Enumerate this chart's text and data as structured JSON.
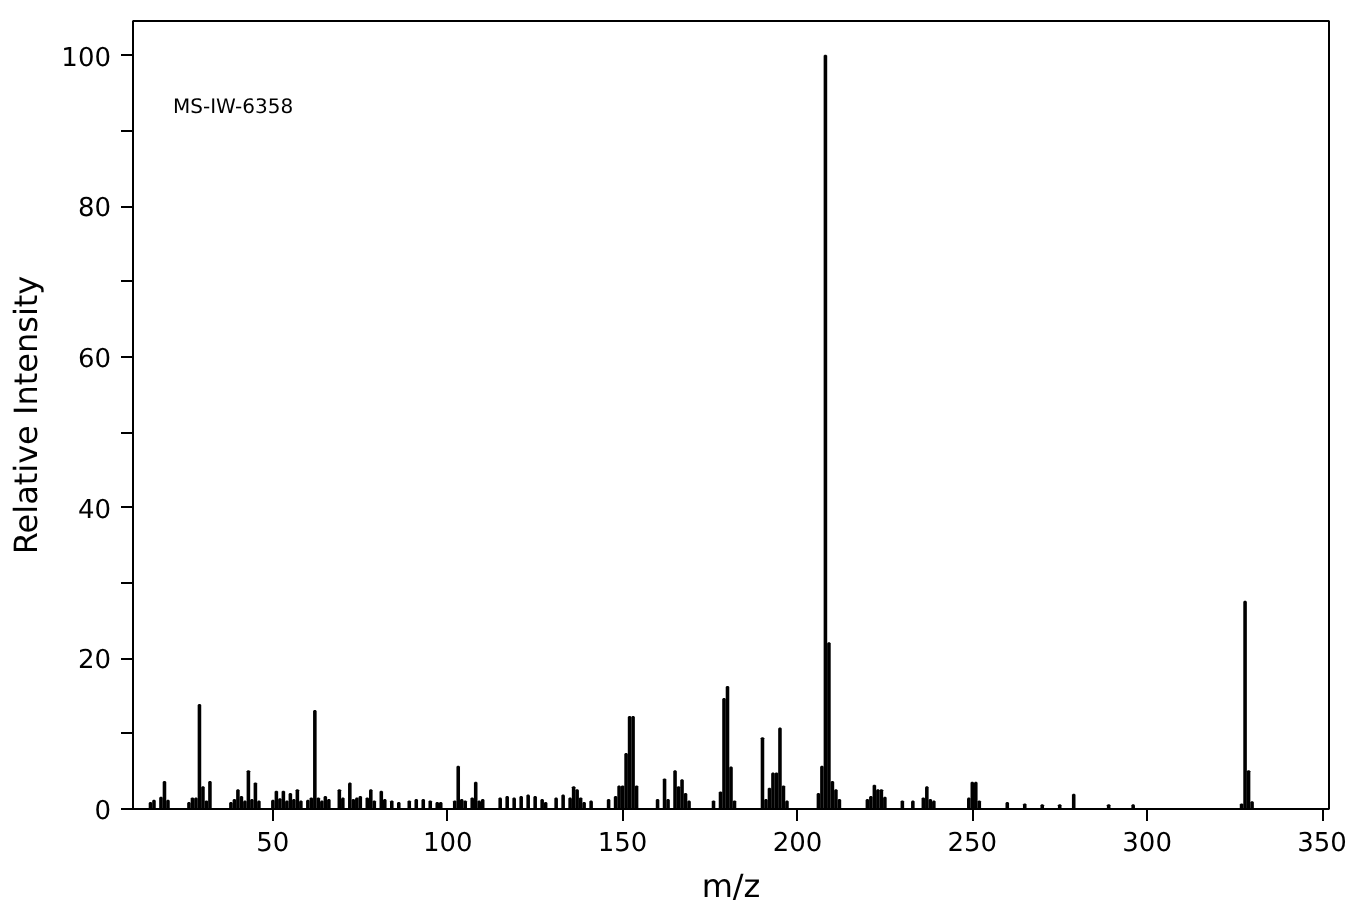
{
  "chart_data": {
    "type": "bar",
    "xlabel": "m/z",
    "ylabel": "Relative Intensity",
    "annotations": [
      "MS-IW-6358"
    ],
    "color": "#000000",
    "x": [
      15,
      16,
      18,
      19,
      20,
      26,
      27,
      28,
      29,
      30,
      31,
      32,
      38,
      39,
      40,
      41,
      42,
      43,
      44,
      45,
      46,
      50,
      51,
      52,
      53,
      54,
      55,
      56,
      57,
      58,
      60,
      61,
      62,
      63,
      64,
      65,
      66,
      69,
      70,
      72,
      73,
      74,
      75,
      77,
      78,
      79,
      81,
      82,
      84,
      86,
      89,
      91,
      93,
      95,
      97,
      98,
      102,
      103,
      104,
      105,
      107,
      108,
      109,
      110,
      115,
      117,
      119,
      121,
      123,
      125,
      127,
      128,
      131,
      133,
      135,
      136,
      137,
      138,
      139,
      141,
      146,
      148,
      149,
      150,
      151,
      152,
      153,
      154,
      160,
      162,
      163,
      165,
      166,
      167,
      168,
      169,
      176,
      178,
      179,
      180,
      181,
      182,
      190,
      191,
      192,
      193,
      194,
      195,
      196,
      197,
      206,
      207,
      208,
      209,
      210,
      211,
      212,
      220,
      221,
      222,
      223,
      224,
      225,
      230,
      233,
      236,
      237,
      238,
      239,
      249,
      250,
      251,
      252,
      260,
      265,
      270,
      275,
      279,
      289,
      296,
      327,
      328,
      329,
      330
    ],
    "values": [
      0.8,
      1.1,
      1.5,
      3.6,
      1.1,
      0.8,
      1.4,
      1.4,
      13.8,
      2.9,
      1.0,
      3.6,
      0.8,
      1.2,
      2.5,
      1.6,
      1.0,
      5.0,
      1.2,
      3.4,
      1.0,
      1.1,
      2.3,
      1.3,
      2.3,
      1.0,
      2.0,
      1.2,
      2.5,
      1.0,
      1.1,
      1.4,
      13.0,
      1.4,
      1.0,
      1.6,
      1.2,
      2.5,
      1.4,
      3.4,
      1.2,
      1.4,
      1.6,
      1.4,
      2.5,
      1.0,
      2.3,
      1.2,
      1.0,
      0.8,
      1.0,
      1.2,
      1.2,
      1.0,
      0.8,
      0.8,
      1.0,
      5.6,
      1.2,
      1.0,
      1.4,
      3.5,
      1.0,
      1.2,
      1.4,
      1.6,
      1.4,
      1.6,
      1.8,
      1.6,
      1.2,
      0.8,
      1.4,
      1.8,
      1.4,
      2.9,
      2.5,
      1.4,
      0.8,
      1.0,
      1.2,
      1.6,
      3.0,
      3.0,
      7.3,
      12.2,
      12.2,
      3.0,
      1.2,
      3.9,
      1.2,
      5.0,
      2.9,
      3.8,
      2.0,
      1.0,
      1.0,
      2.2,
      14.6,
      16.2,
      5.5,
      1.0,
      9.4,
      1.2,
      2.7,
      4.7,
      4.7,
      10.7,
      3.0,
      1.0,
      2.0,
      5.6,
      100,
      22,
      3.6,
      2.5,
      1.2,
      1.2,
      1.6,
      3.1,
      2.5,
      2.5,
      1.5,
      1.0,
      1.0,
      1.4,
      2.9,
      1.2,
      1.0,
      1.4,
      3.5,
      3.5,
      1.0,
      0.8,
      0.6,
      0.5,
      0.5,
      1.9,
      0.5,
      0.5,
      0.6,
      27.5,
      5.0,
      0.9
    ],
    "xlim": [
      10,
      352
    ],
    "xticks": [
      50,
      100,
      150,
      200,
      250,
      300,
      350
    ],
    "ylim": [
      0,
      104.6
    ],
    "yticks": [
      0,
      {
        "value": 10,
        "label": null
      },
      20,
      {
        "value": 30,
        "label": null
      },
      40,
      {
        "value": 50,
        "label": null
      },
      60,
      {
        "value": 70,
        "label": null
      },
      80,
      {
        "value": 90,
        "label": null
      },
      100
    ],
    "grid": false
  }
}
